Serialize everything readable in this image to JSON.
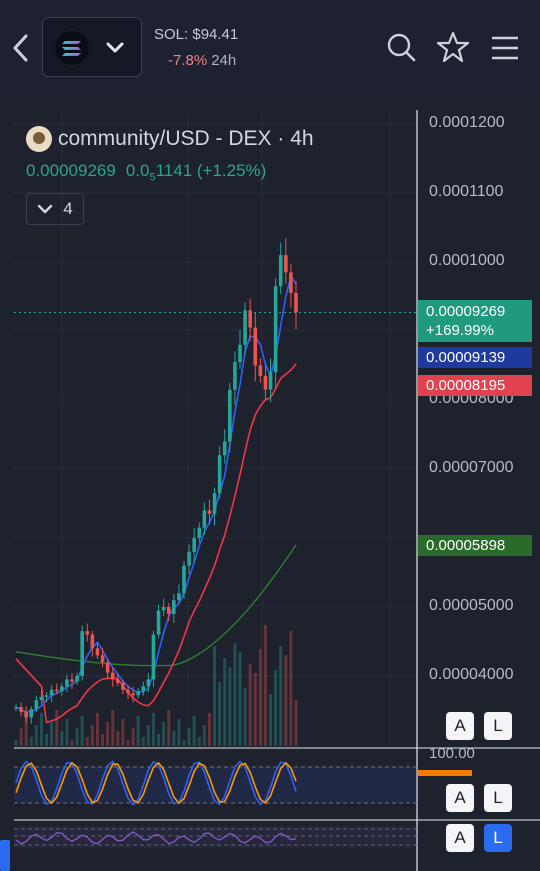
{
  "header": {
    "sol_price": "SOL: $94.41",
    "sol_change": "-7.8%",
    "sol_period": "24h"
  },
  "chart": {
    "pair_title": "community/USD - DEX · 4h",
    "last_price": "0.00009269",
    "change_prefix": "0.0",
    "change_sub": "5",
    "change_rest": "1141 (+1.25%)",
    "indicator_count": "4",
    "price_axis": [
      "0.0001200",
      "0.0001100",
      "0.0001000",
      "0.00008000",
      "0.00007000",
      "0.00005000",
      "0.00004000"
    ],
    "tags": {
      "last": "0.00009269",
      "last_pct": "+169.99%",
      "ma_blue": "0.00009139",
      "ma_red": "0.00008195",
      "ma_green": "0.00005898"
    },
    "osc_level": "100.00",
    "buttons": {
      "a": "A",
      "l": "L"
    },
    "colors": {
      "up": "#26a69a",
      "down": "#ef5350",
      "ma_blue": "#2962ff",
      "ma_red": "#f23645",
      "ma_green": "#2e7d32",
      "osc_k": "#2962ff",
      "osc_d": "#ff9800",
      "rsi": "#7e57c2"
    }
  },
  "chart_data": {
    "type": "candlestick",
    "title": "community/USD - DEX · 4h",
    "ylim": [
      3.2e-05,
      0.000125
    ],
    "y_ticks": [
      0.00012,
      0.00011,
      0.0001,
      8e-05,
      7e-05,
      5e-05,
      4e-05
    ],
    "last": 9.269e-05,
    "change_pct": 1.25,
    "ma_values": {
      "blue": 9.139e-05,
      "red": 8.195e-05,
      "green": 5.898e-05
    },
    "close_series_approx": [
      3.55e-05,
      3.48e-05,
      3.4e-05,
      3.52e-05,
      3.65e-05,
      3.7e-05,
      3.72e-05,
      3.8e-05,
      3.78e-05,
      3.85e-05,
      3.95e-05,
      3.92e-05,
      4e-05,
      4.65e-05,
      4.6e-05,
      4.4e-05,
      4.3e-05,
      4.2e-05,
      4.05e-05,
      3.95e-05,
      3.9e-05,
      3.8e-05,
      3.75e-05,
      3.72e-05,
      3.78e-05,
      3.85e-05,
      3.95e-05,
      4.6e-05,
      4.95e-05,
      5e-05,
      4.9e-05,
      5.1e-05,
      5.2e-05,
      5.6e-05,
      5.8e-05,
      6e-05,
      6.15e-05,
      6.4e-05,
      6.35e-05,
      6.65e-05,
      7.2e-05,
      7.4e-05,
      8.15e-05,
      8.55e-05,
      8.8e-05,
      9.3e-05,
      9.05e-05,
      8.5e-05,
      8.35e-05,
      8.15e-05,
      8.4e-05,
      9.65e-05,
      0.000101,
      9.85e-05,
      9.55e-05,
      9.27e-05
    ]
  }
}
